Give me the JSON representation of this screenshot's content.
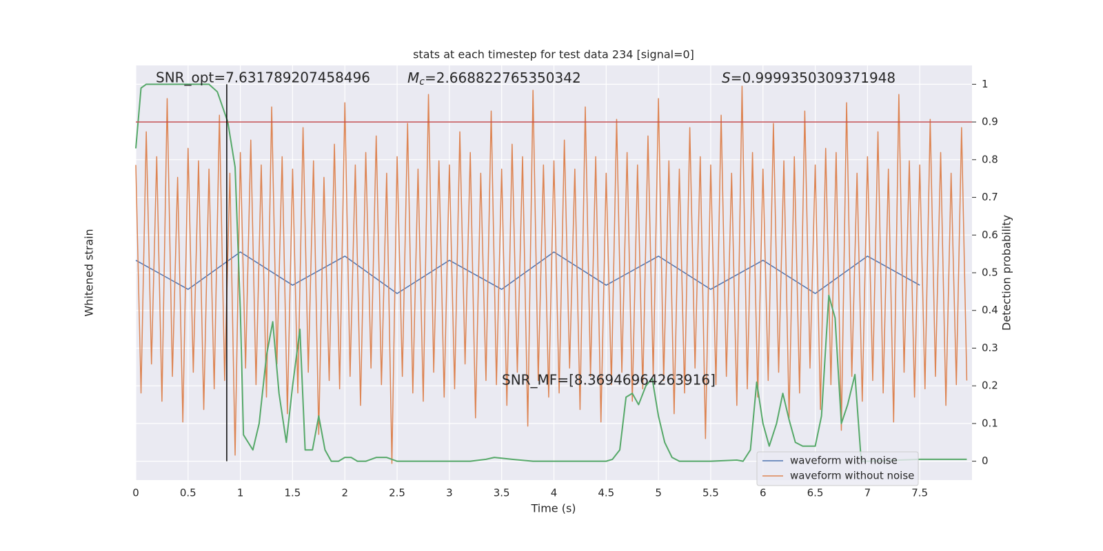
{
  "chart_data": {
    "type": "line",
    "title": "stats at each timestep for test data 234 [signal=0]",
    "xlabel": "Time (s)",
    "ylabel": "Whitened strain",
    "y2label": "Detection probability",
    "xlim": [
      0,
      8
    ],
    "xticks": [
      0.0,
      0.5,
      1.0,
      1.5,
      2.0,
      2.5,
      3.0,
      3.5,
      4.0,
      4.5,
      5.0,
      5.5,
      6.0,
      6.5,
      7.0,
      7.5
    ],
    "ylim": [
      -5,
      5
    ],
    "y2lim": [
      -0.05,
      1.05
    ],
    "y2ticks": [
      0.0,
      0.1,
      0.2,
      0.3,
      0.4,
      0.5,
      0.6,
      0.7,
      0.8,
      0.9,
      1.0
    ],
    "grid": true,
    "legend": "lower right",
    "annotations": [
      {
        "text": "SNR_opt=7.631789207458496"
      },
      {
        "symbol": "M",
        "subscript": "c",
        "text": "=2.668822765350342"
      },
      {
        "symbol": "S",
        "text": "=0.9999350309371948"
      },
      {
        "text": "SNR_MF=[8.36946964263916]"
      }
    ],
    "series": [
      {
        "name": "waveform with noise",
        "color": "#4c72b0",
        "x": [
          0,
          0.5,
          1,
          1.5,
          2,
          2.5,
          3,
          3.5,
          4,
          4.5,
          5,
          5.5,
          6,
          6.5,
          7,
          7.5
        ],
        "values": [
          0.3,
          -0.4,
          0.5,
          -0.3,
          0.4,
          -0.5,
          0.3,
          -0.4,
          0.5,
          -0.3,
          0.4,
          -0.4,
          0.3,
          -0.5,
          0.4,
          -0.3
        ]
      },
      {
        "name": "waveform without noise",
        "color": "#dd8452",
        "x": [
          0,
          0.05,
          0.1,
          0.15,
          0.2,
          0.25,
          0.3,
          0.35,
          0.4,
          0.45,
          0.5,
          0.55,
          0.6,
          0.65,
          0.7,
          0.75,
          0.8,
          0.85,
          0.9,
          0.95,
          1,
          1.05,
          1.1,
          1.15,
          1.2,
          1.25,
          1.3,
          1.35,
          1.4,
          1.45,
          1.5,
          1.55,
          1.6,
          1.65,
          1.7,
          1.75,
          1.8,
          1.85,
          1.9,
          1.95,
          2,
          2.05,
          2.1,
          2.15,
          2.2,
          2.25,
          2.3,
          2.35,
          2.4,
          2.45,
          2.5,
          2.55,
          2.6,
          2.65,
          2.7,
          2.75,
          2.8,
          2.85,
          2.9,
          2.95,
          3,
          3.05,
          3.1,
          3.15,
          3.2,
          3.25,
          3.3,
          3.35,
          3.4,
          3.45,
          3.5,
          3.55,
          3.6,
          3.65,
          3.7,
          3.75,
          3.8,
          3.85,
          3.9,
          3.95,
          4,
          4.05,
          4.1,
          4.15,
          4.2,
          4.25,
          4.3,
          4.35,
          4.4,
          4.45,
          4.5,
          4.55,
          4.6,
          4.65,
          4.7,
          4.75,
          4.8,
          4.85,
          4.9,
          4.95,
          5,
          5.05,
          5.1,
          5.15,
          5.2,
          5.25,
          5.3,
          5.35,
          5.4,
          5.45,
          5.5,
          5.55,
          5.6,
          5.65,
          5.7,
          5.75,
          5.8,
          5.85,
          5.9,
          5.95,
          6,
          6.05,
          6.1,
          6.15,
          6.2,
          6.25,
          6.3,
          6.35,
          6.4,
          6.45,
          6.5,
          6.55,
          6.6,
          6.65,
          6.7,
          6.75,
          6.8,
          6.85,
          6.9,
          6.95,
          7,
          7.05,
          7.1,
          7.15,
          7.2,
          7.25,
          7.3,
          7.35,
          7.4,
          7.45,
          7.5,
          7.55,
          7.6,
          7.65,
          7.7,
          7.75,
          7.8,
          7.85,
          7.9,
          7.95
        ],
        "values": [
          2.6,
          -2.9,
          3.4,
          -2.2,
          2.8,
          -3.1,
          4.2,
          -2.5,
          2.3,
          -3.6,
          3.0,
          -2.4,
          2.7,
          -3.3,
          2.5,
          -2.8,
          3.8,
          -2.6,
          2.4,
          -4.4,
          2.9,
          -2.3,
          3.2,
          -2.7,
          2.6,
          -3.0,
          4.0,
          -2.2,
          2.8,
          -3.4,
          2.5,
          -2.9,
          3.5,
          -2.4,
          2.7,
          -3.9,
          2.3,
          -2.6,
          3.1,
          -2.8,
          4.1,
          -2.5,
          2.6,
          -3.2,
          2.9,
          -2.3,
          3.3,
          -2.7,
          2.4,
          -4.6,
          2.8,
          -2.5,
          3.6,
          -2.9,
          2.5,
          -3.1,
          4.3,
          -2.4,
          2.7,
          -3.0,
          2.6,
          -2.8,
          3.4,
          -2.2,
          2.9,
          -3.5,
          2.4,
          -2.6,
          3.9,
          -2.7,
          2.5,
          -3.2,
          3.1,
          -2.4,
          2.8,
          -3.7,
          4.4,
          -2.6,
          2.6,
          -3.0,
          2.7,
          -2.9,
          3.2,
          -2.3,
          2.5,
          -3.3,
          4.0,
          -2.5,
          2.8,
          -3.6,
          2.4,
          -2.7,
          3.7,
          -2.4,
          2.9,
          -3.1,
          2.6,
          -2.8,
          3.3,
          -2.5,
          4.2,
          -2.6,
          2.7,
          -3.4,
          2.5,
          -2.9,
          3.5,
          -2.3,
          2.8,
          -4.0,
          2.6,
          -2.7,
          3.8,
          -2.5,
          2.4,
          -3.2,
          4.5,
          -2.8,
          2.9,
          -3.0,
          2.5,
          -2.6,
          3.6,
          -2.4,
          2.7,
          -3.5,
          2.8,
          -2.9,
          3.9,
          -2.3,
          2.6,
          -3.3,
          3.0,
          -2.7,
          2.9,
          -3.8,
          4.1,
          -2.5,
          2.4,
          -3.1,
          2.8,
          -2.6,
          3.4,
          -2.9,
          2.5,
          -3.6,
          4.3,
          -2.4,
          2.7,
          -3.0,
          2.6,
          -2.8,
          3.7,
          -2.5,
          2.9,
          -3.2,
          2.4,
          -2.7,
          3.5,
          -2.6
        ]
      }
    ],
    "probability": {
      "color": "#55a868",
      "axis": "y2",
      "x": [
        0,
        0.05,
        0.1,
        0.3,
        0.5,
        0.7,
        0.78,
        0.83,
        0.88,
        0.95,
        1.0,
        1.03,
        1.12,
        1.18,
        1.25,
        1.31,
        1.37,
        1.44,
        1.5,
        1.57,
        1.62,
        1.69,
        1.75,
        1.81,
        1.87,
        1.94,
        2.0,
        2.06,
        2.12,
        2.2,
        2.3,
        2.4,
        2.5,
        2.8,
        3.2,
        3.35,
        3.43,
        3.6,
        3.8,
        4.0,
        4.3,
        4.5,
        4.56,
        4.63,
        4.69,
        4.75,
        4.81,
        4.88,
        4.94,
        5.0,
        5.06,
        5.13,
        5.2,
        5.5,
        5.75,
        5.81,
        5.88,
        5.94,
        6.0,
        6.06,
        6.13,
        6.19,
        6.25,
        6.31,
        6.38,
        6.44,
        6.5,
        6.56,
        6.63,
        6.69,
        6.75,
        6.81,
        6.88,
        6.94,
        7.0,
        7.5,
        7.95
      ],
      "values": [
        0.83,
        0.99,
        1.0,
        1.0,
        1.0,
        1.0,
        0.98,
        0.94,
        0.9,
        0.78,
        0.4,
        0.07,
        0.03,
        0.1,
        0.28,
        0.37,
        0.18,
        0.05,
        0.2,
        0.35,
        0.03,
        0.03,
        0.12,
        0.03,
        0.0,
        0.0,
        0.01,
        0.01,
        0.0,
        0.0,
        0.01,
        0.01,
        0.0,
        0.0,
        0.0,
        0.005,
        0.01,
        0.005,
        0.0,
        0.0,
        0.0,
        0.0,
        0.005,
        0.03,
        0.17,
        0.18,
        0.15,
        0.2,
        0.22,
        0.12,
        0.05,
        0.01,
        0.0,
        0.0,
        0.003,
        0.0,
        0.03,
        0.21,
        0.1,
        0.04,
        0.1,
        0.18,
        0.11,
        0.05,
        0.04,
        0.04,
        0.04,
        0.12,
        0.44,
        0.38,
        0.1,
        0.15,
        0.23,
        0.0,
        0.0,
        0.005,
        0.005
      ]
    },
    "threshold": {
      "value": 0.9,
      "color": "#c44e52",
      "axis": "y2"
    },
    "marker_line": {
      "x": 0.87,
      "color": "#000000"
    }
  }
}
